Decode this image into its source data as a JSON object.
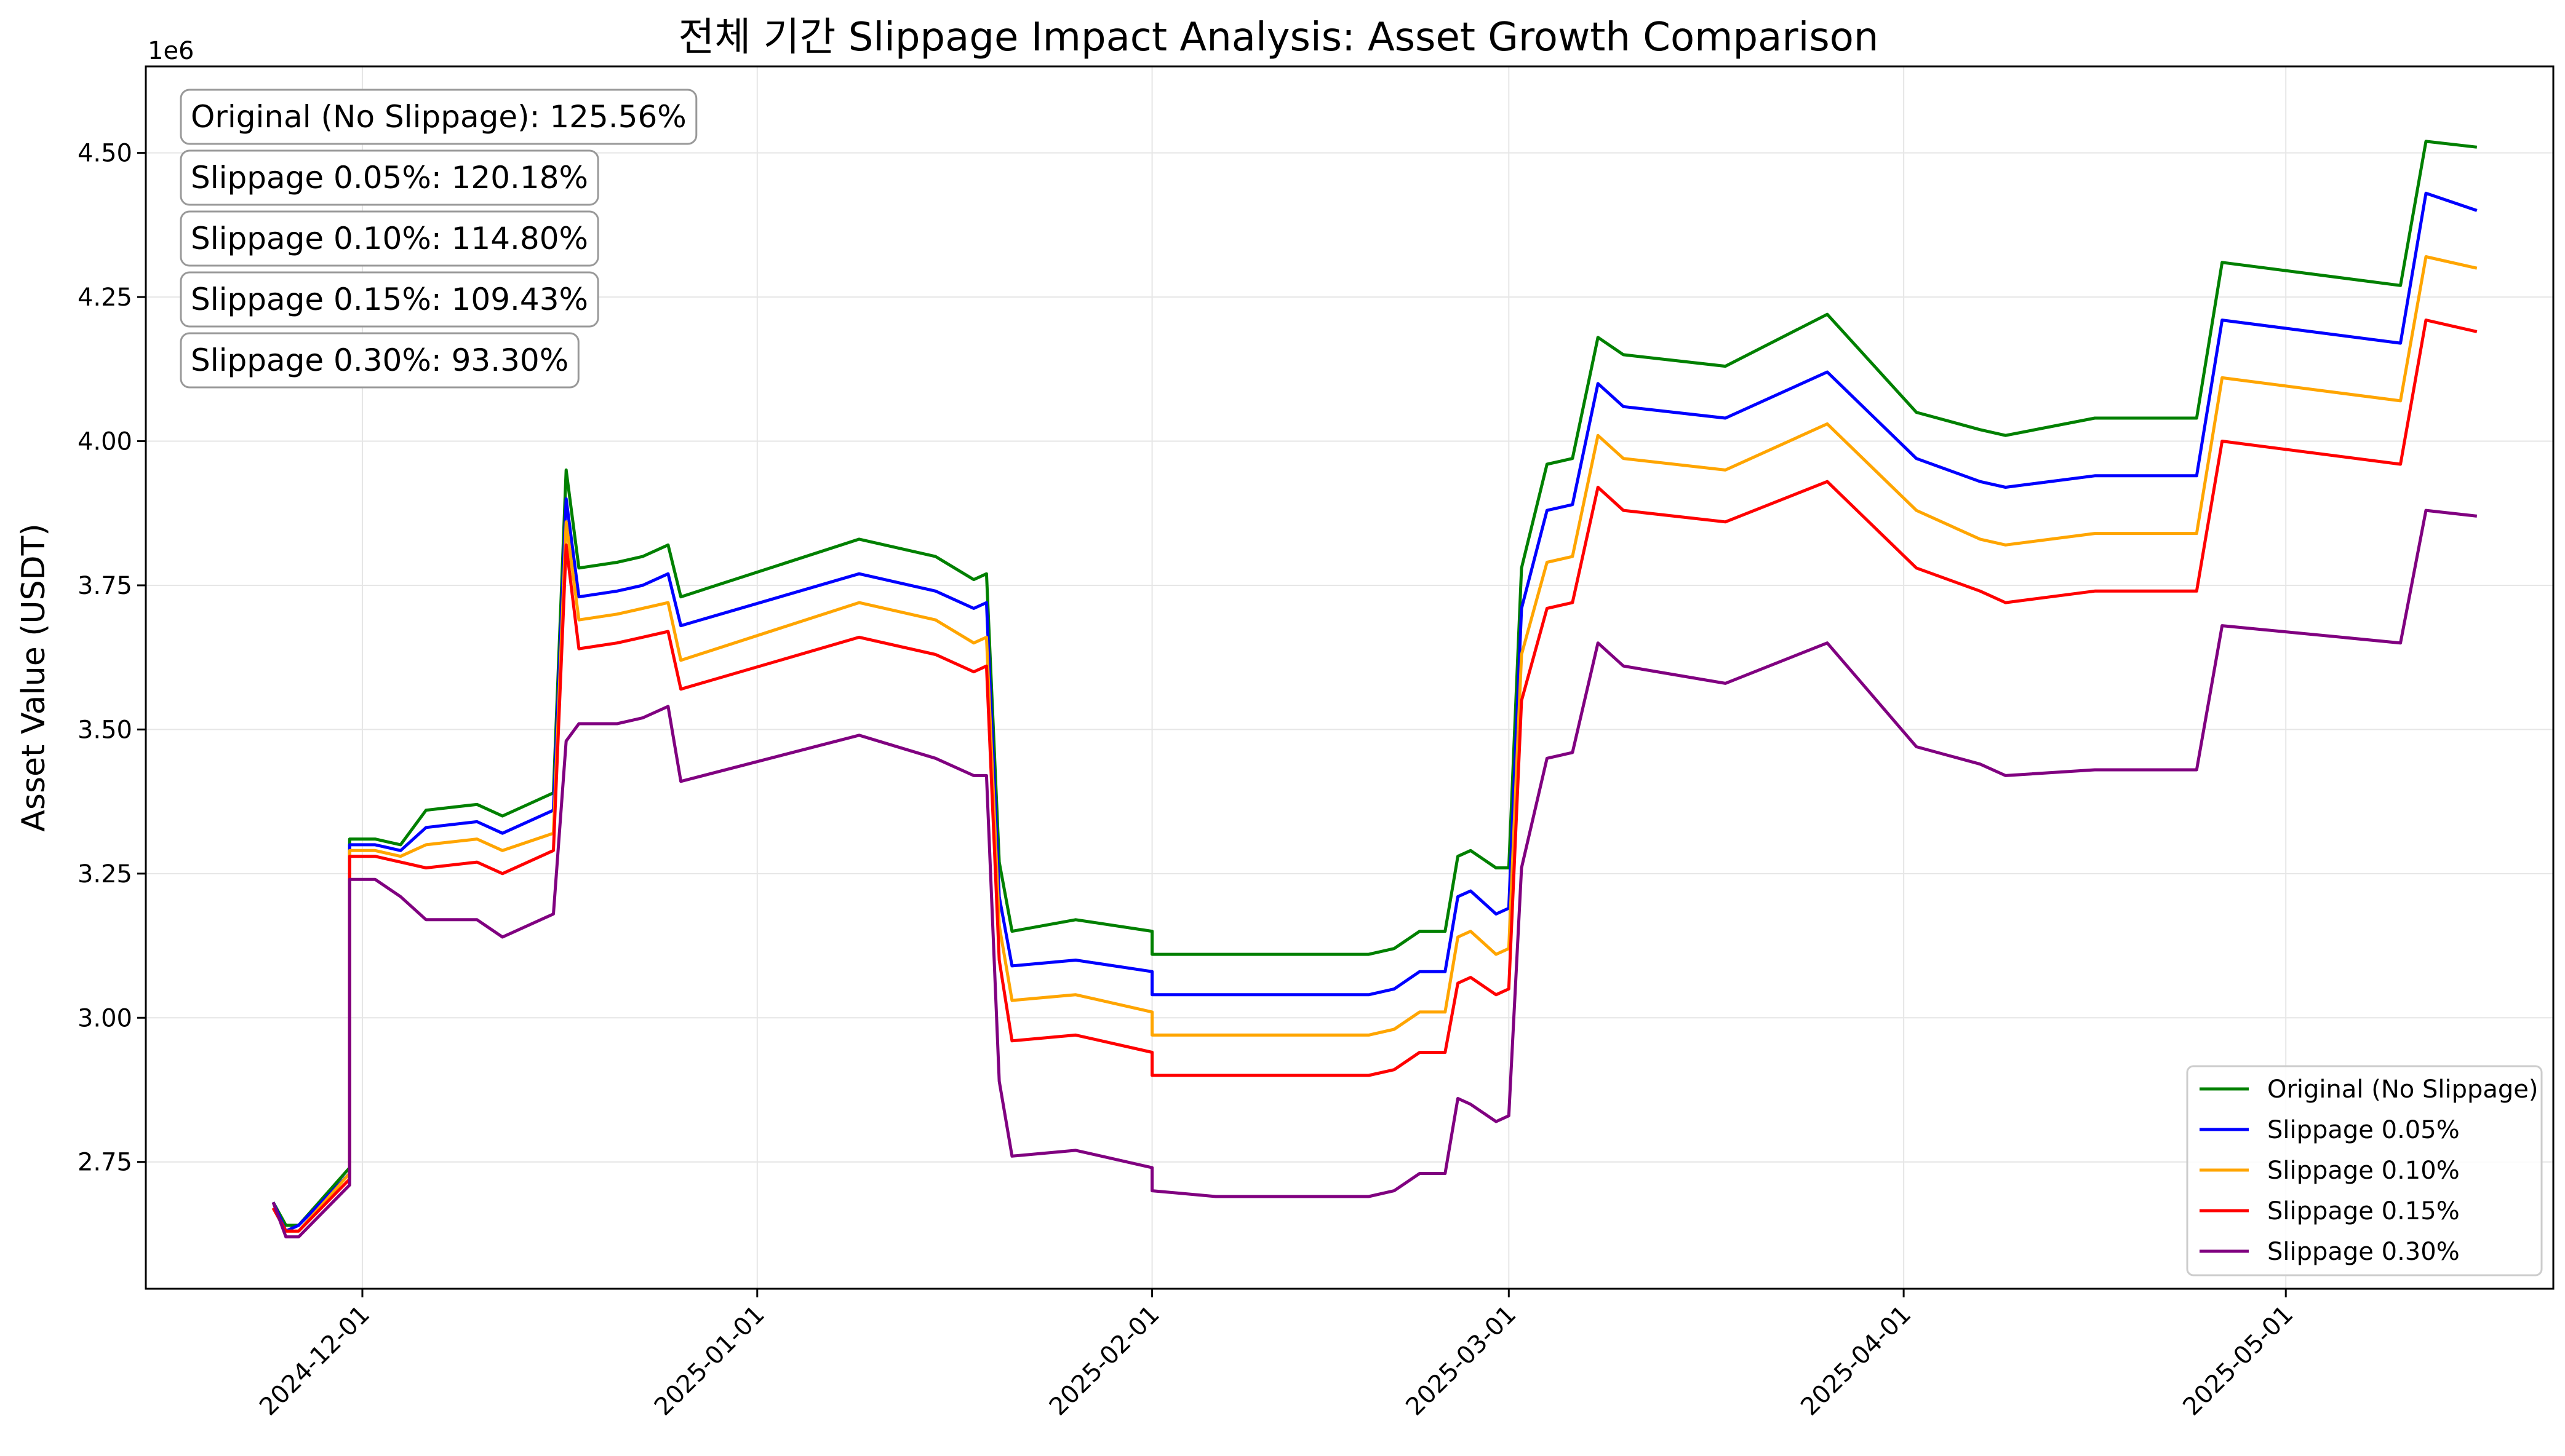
{
  "chart_data": {
    "type": "line",
    "title": "전체 기간 Slippage Impact Analysis: Asset Growth Comparison",
    "xlabel": "",
    "ylabel": "Asset Value (USDT)",
    "offset_label": "1e6",
    "xlim": [
      "2024-11-14",
      "2025-05-22"
    ],
    "ylim": [
      2.53,
      4.65
    ],
    "grid": true,
    "legend_position": "lower-right",
    "x_ticks": [
      "2024-12-01",
      "2025-01-01",
      "2025-02-01",
      "2025-03-01",
      "2025-04-01",
      "2025-05-01"
    ],
    "y_ticks": [
      2.75,
      3.0,
      3.25,
      3.5,
      3.75,
      4.0,
      4.25,
      4.5
    ],
    "y_tick_labels": [
      "2.75",
      "3.00",
      "3.25",
      "3.50",
      "3.75",
      "4.00",
      "4.25",
      "4.50"
    ],
    "annotations": [
      "Original (No Slippage): 125.56%",
      "Slippage 0.05%: 120.18%",
      "Slippage 0.10%: 114.80%",
      "Slippage 0.15%: 109.43%",
      "Slippage 0.30%: 93.30%"
    ],
    "x": [
      "2024-11-24",
      "2024-11-25",
      "2024-11-26",
      "2024-11-30",
      "2024-11-30",
      "2024-12-02",
      "2024-12-04",
      "2024-12-06",
      "2024-12-10",
      "2024-12-12",
      "2024-12-16",
      "2024-12-17",
      "2024-12-18",
      "2024-12-21",
      "2024-12-23",
      "2024-12-25",
      "2024-12-26",
      "2025-01-09",
      "2025-01-15",
      "2025-01-18",
      "2025-01-19",
      "2025-01-20",
      "2025-01-21",
      "2025-01-26",
      "2025-02-01",
      "2025-02-01",
      "2025-02-06",
      "2025-02-17",
      "2025-02-18",
      "2025-02-20",
      "2025-02-22",
      "2025-02-24",
      "2025-02-25",
      "2025-02-26",
      "2025-02-28",
      "2025-03-01",
      "2025-03-02",
      "2025-03-04",
      "2025-03-06",
      "2025-03-08",
      "2025-03-10",
      "2025-03-18",
      "2025-03-26",
      "2025-04-02",
      "2025-04-07",
      "2025-04-09",
      "2025-04-16",
      "2025-04-24",
      "2025-04-26",
      "2025-05-10",
      "2025-05-12",
      "2025-05-16"
    ],
    "series": [
      {
        "name": "Original (No Slippage)",
        "color": "#008000",
        "values": [
          2.68,
          2.64,
          2.64,
          2.74,
          3.31,
          3.31,
          3.3,
          3.36,
          3.37,
          3.35,
          3.39,
          3.95,
          3.78,
          3.79,
          3.8,
          3.82,
          3.73,
          3.83,
          3.8,
          3.76,
          3.77,
          3.27,
          3.15,
          3.17,
          3.15,
          3.11,
          3.11,
          3.11,
          3.11,
          3.12,
          3.15,
          3.15,
          3.28,
          3.29,
          3.26,
          3.26,
          3.78,
          3.96,
          3.97,
          4.18,
          4.15,
          4.13,
          4.22,
          4.05,
          4.02,
          4.01,
          4.04,
          4.04,
          4.31,
          4.27,
          4.52,
          4.51
        ]
      },
      {
        "name": "Slippage 0.05%",
        "color": "#0000ff",
        "values": [
          2.68,
          2.63,
          2.64,
          2.73,
          3.3,
          3.3,
          3.29,
          3.33,
          3.34,
          3.32,
          3.36,
          3.9,
          3.73,
          3.74,
          3.75,
          3.77,
          3.68,
          3.77,
          3.74,
          3.71,
          3.72,
          3.21,
          3.09,
          3.1,
          3.08,
          3.04,
          3.04,
          3.04,
          3.04,
          3.05,
          3.08,
          3.08,
          3.21,
          3.22,
          3.18,
          3.19,
          3.71,
          3.88,
          3.89,
          4.1,
          4.06,
          4.04,
          4.12,
          3.97,
          3.93,
          3.92,
          3.94,
          3.94,
          4.21,
          4.17,
          4.43,
          4.4
        ]
      },
      {
        "name": "Slippage 0.10%",
        "color": "#ffa500",
        "values": [
          2.67,
          2.63,
          2.63,
          2.73,
          3.29,
          3.29,
          3.28,
          3.3,
          3.31,
          3.29,
          3.32,
          3.86,
          3.69,
          3.7,
          3.71,
          3.72,
          3.62,
          3.72,
          3.69,
          3.65,
          3.66,
          3.16,
          3.03,
          3.04,
          3.01,
          2.97,
          2.97,
          2.97,
          2.97,
          2.98,
          3.01,
          3.01,
          3.14,
          3.15,
          3.11,
          3.12,
          3.63,
          3.79,
          3.8,
          4.01,
          3.97,
          3.95,
          4.03,
          3.88,
          3.83,
          3.82,
          3.84,
          3.84,
          4.11,
          4.07,
          4.32,
          4.3
        ]
      },
      {
        "name": "Slippage 0.15%",
        "color": "#ff0000",
        "values": [
          2.67,
          2.63,
          2.63,
          2.72,
          3.28,
          3.28,
          3.27,
          3.26,
          3.27,
          3.25,
          3.29,
          3.82,
          3.64,
          3.65,
          3.66,
          3.67,
          3.57,
          3.66,
          3.63,
          3.6,
          3.61,
          3.1,
          2.96,
          2.97,
          2.94,
          2.9,
          2.9,
          2.9,
          2.9,
          2.91,
          2.94,
          2.94,
          3.06,
          3.07,
          3.04,
          3.05,
          3.55,
          3.71,
          3.72,
          3.92,
          3.88,
          3.86,
          3.93,
          3.78,
          3.74,
          3.72,
          3.74,
          3.74,
          4.0,
          3.96,
          4.21,
          4.19
        ]
      },
      {
        "name": "Slippage 0.30%",
        "color": "#800080",
        "values": [
          2.68,
          2.62,
          2.62,
          2.71,
          3.24,
          3.24,
          3.21,
          3.17,
          3.17,
          3.14,
          3.18,
          3.48,
          3.51,
          3.51,
          3.52,
          3.54,
          3.41,
          3.49,
          3.45,
          3.42,
          3.42,
          2.89,
          2.76,
          2.77,
          2.74,
          2.7,
          2.69,
          2.69,
          2.69,
          2.7,
          2.73,
          2.73,
          2.86,
          2.85,
          2.82,
          2.83,
          3.26,
          3.45,
          3.46,
          3.65,
          3.61,
          3.58,
          3.65,
          3.47,
          3.44,
          3.42,
          3.43,
          3.43,
          3.68,
          3.65,
          3.88,
          3.87
        ]
      }
    ]
  }
}
